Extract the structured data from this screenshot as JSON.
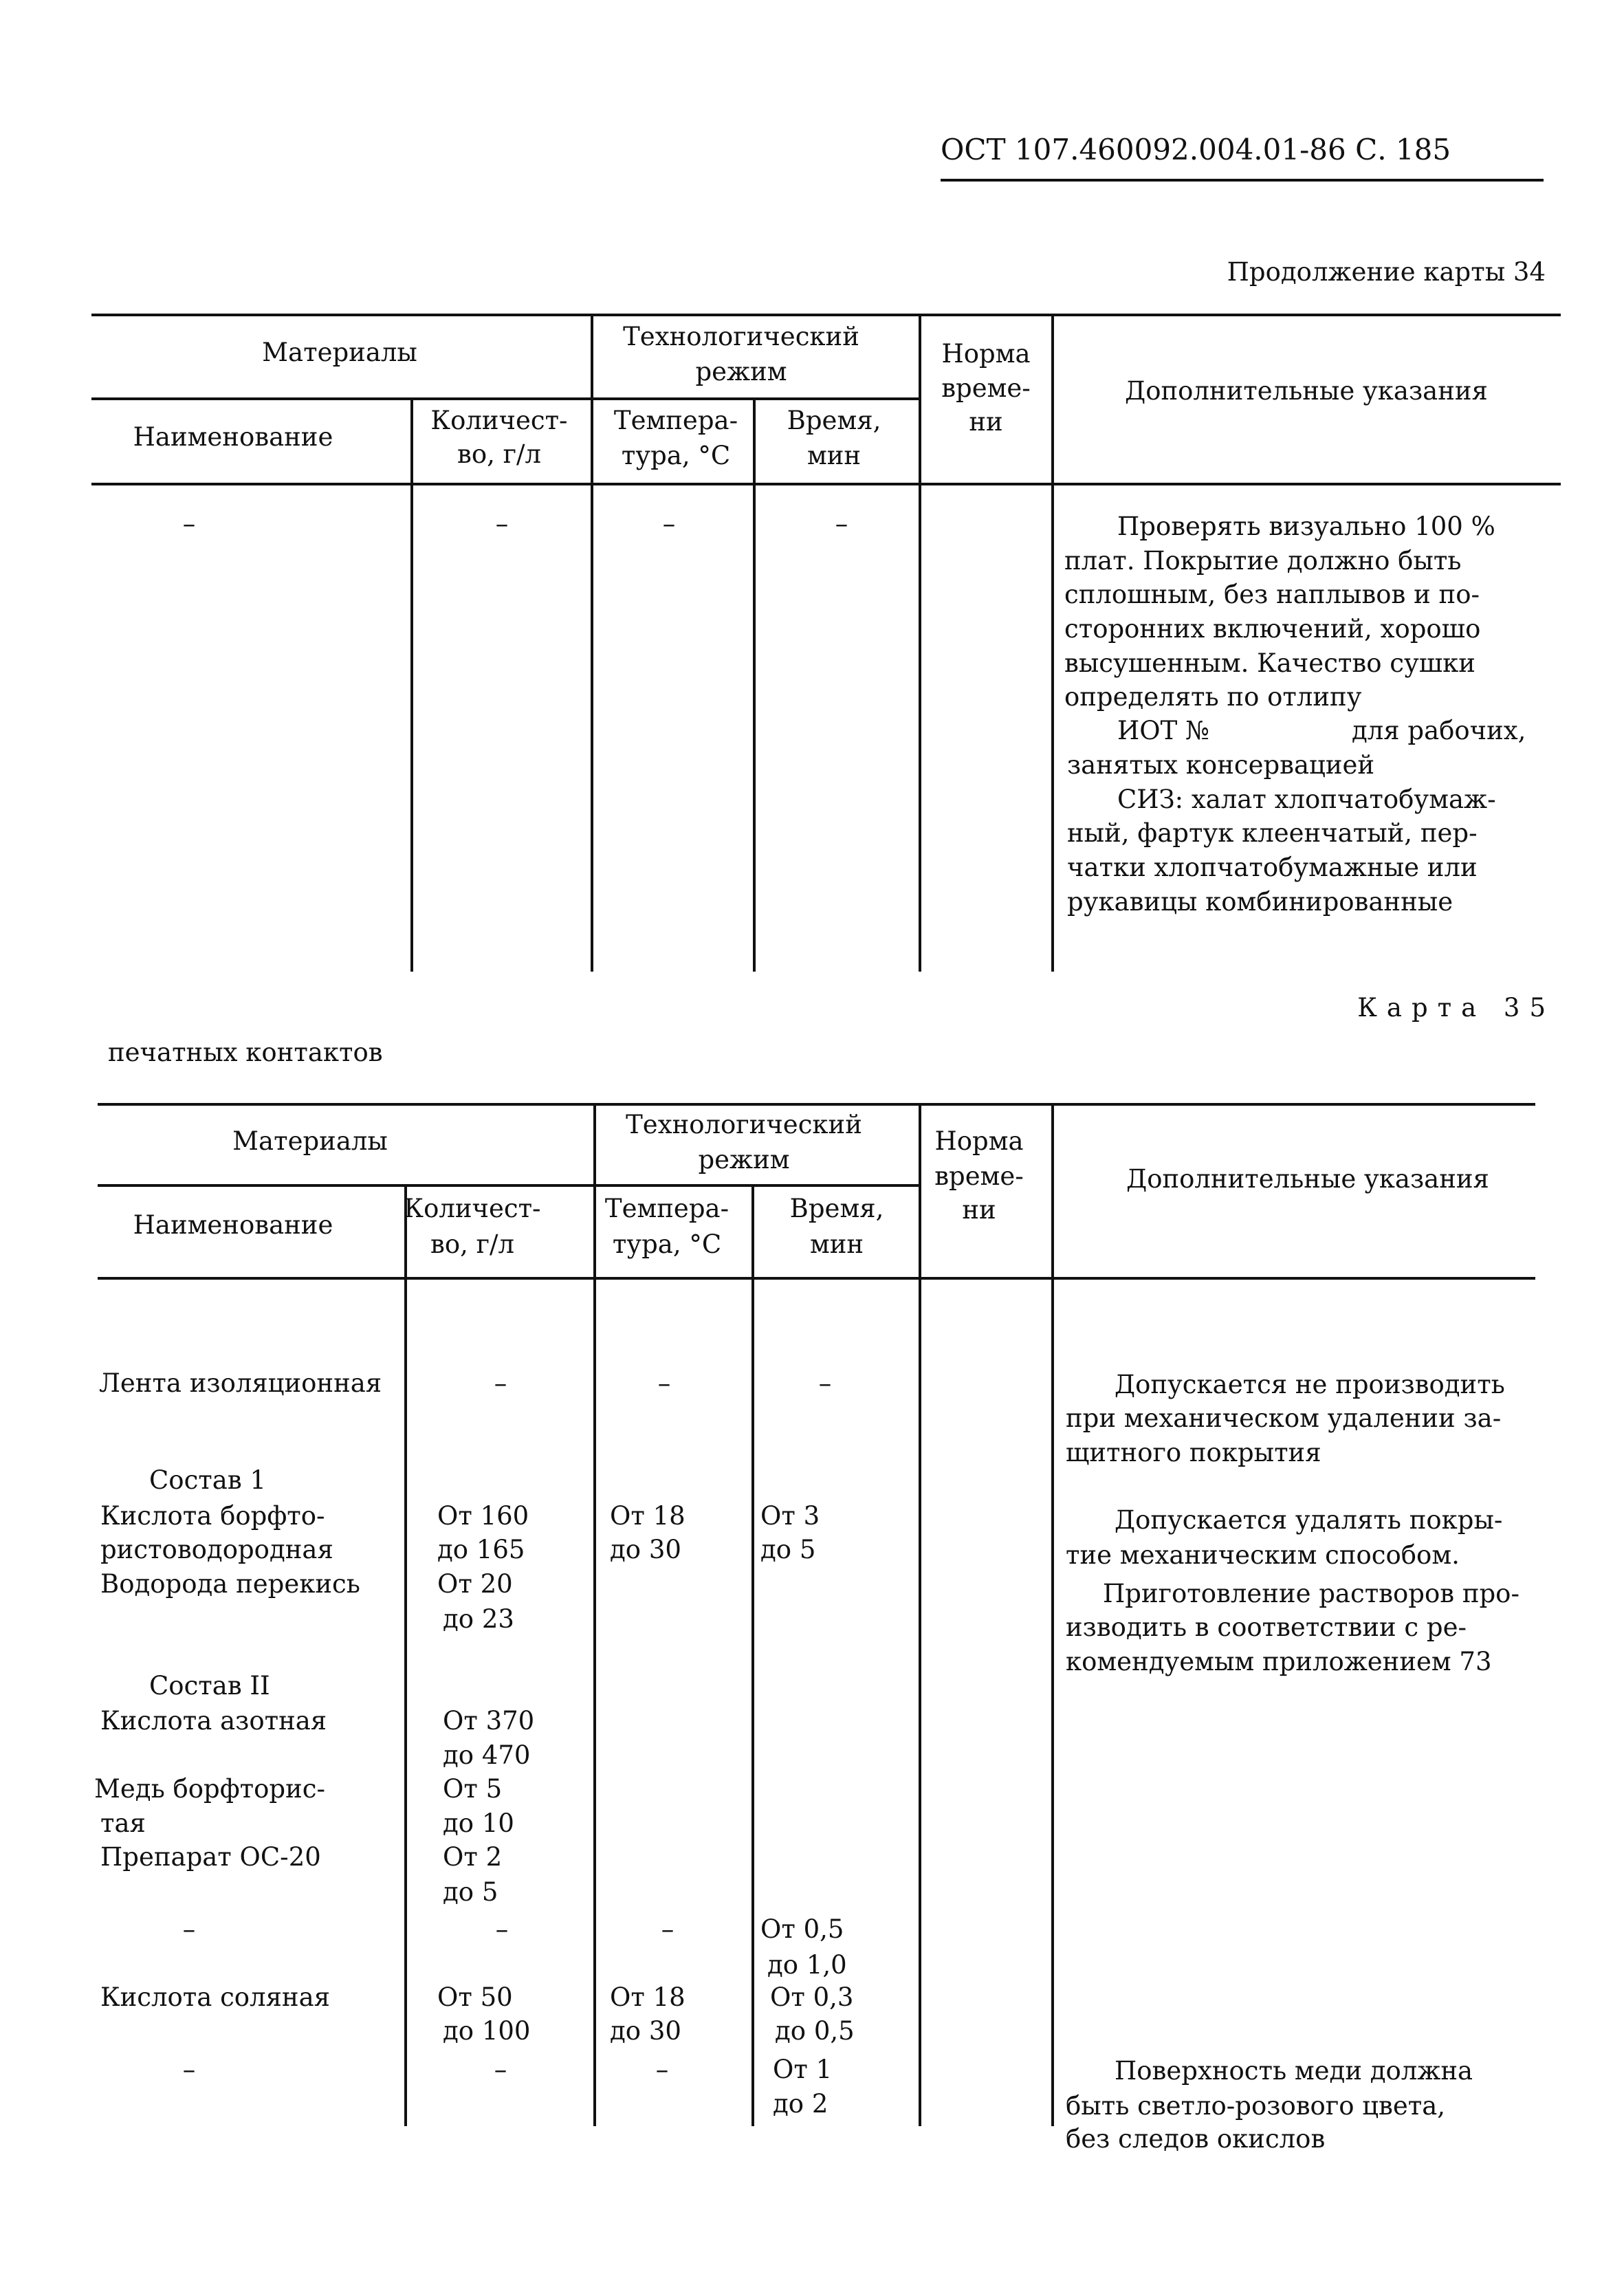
{
  "header": {
    "doc_code": "ОСТ 107.460092.004.01-86 С. 185"
  },
  "card34": {
    "caption": "Продолжение карты 34",
    "columns": {
      "materials": "Материалы",
      "mode": [
        "Технологический",
        "режим"
      ],
      "norm": [
        "Норма",
        "време-",
        "ни"
      ],
      "notes": "Дополнительные указания",
      "name": "Наименование",
      "qty": [
        "Количест-",
        "во, г/л"
      ],
      "temp": [
        "Темпера-",
        "тура, °С"
      ],
      "time": [
        "Время,",
        "мин"
      ]
    },
    "row": {
      "name": "–",
      "qty": "–",
      "temp": "–",
      "time": "–",
      "notes": [
        "Проверять визуально 100 %",
        "плат. Покрытие должно быть",
        "сплошным, без наплывов и по-",
        "сторонних включений, хорошо",
        "высушенным. Качество сушки",
        "определять по отлипу",
        "ИОТ №",
        "для рабочих,",
        "занятых консервацией",
        "СИЗ: халат хлопчатобумаж-",
        "ный, фартук клеенчатый, пер-",
        "чатки хлопчатобумажные или",
        "рукавицы комбинированные"
      ]
    }
  },
  "card35": {
    "caption": "Карта 35",
    "subtitle": "печатных контактов",
    "columns": {
      "materials": "Материалы",
      "mode": [
        "Технологический",
        "режим"
      ],
      "norm": [
        "Норма",
        "време-",
        "ни"
      ],
      "notes": "Дополнительные указания",
      "name": "Наименование",
      "qty": [
        "Количест-",
        "во, г/л"
      ],
      "temp": [
        "Темпера-",
        "тура, °С"
      ],
      "time": [
        "Время,",
        "мин"
      ]
    },
    "name": [
      "Лента изоляционная",
      "Состав 1",
      "Кислота борфто-",
      "ристоводородная",
      "Водорода перекись",
      "Состав II",
      "Кислота азотная",
      "Медь борфторис-",
      "тая",
      "Препарат ОС-20",
      "–",
      "Кислота соляная",
      "–"
    ],
    "qty": [
      "–",
      "От 160",
      "до 165",
      "От 20",
      "до 23",
      "От 370",
      "до 470",
      "От 5",
      "до 10",
      "От 2",
      "до 5",
      "–",
      "От 50",
      "до 100",
      "–"
    ],
    "temp": [
      "–",
      "От 18",
      "до 30",
      "–",
      "От 18",
      "до 30",
      "–"
    ],
    "time": [
      "–",
      "От 3",
      "до 5",
      "От 0,5",
      "до 1,0",
      "От 0,3",
      "до 0,5",
      "От 1",
      "до 2"
    ],
    "notes": [
      "Допускается не производить",
      "при механическом удалении за-",
      "щитного покрытия",
      "Допускается удалять покры-",
      "тие механическим способом.",
      "Приготовление растворов про-",
      "изводить в соответствии с ре-",
      "комендуемым приложением 73",
      "Поверхность меди должна",
      "быть светло-розового цвета,",
      "без следов окислов"
    ]
  }
}
